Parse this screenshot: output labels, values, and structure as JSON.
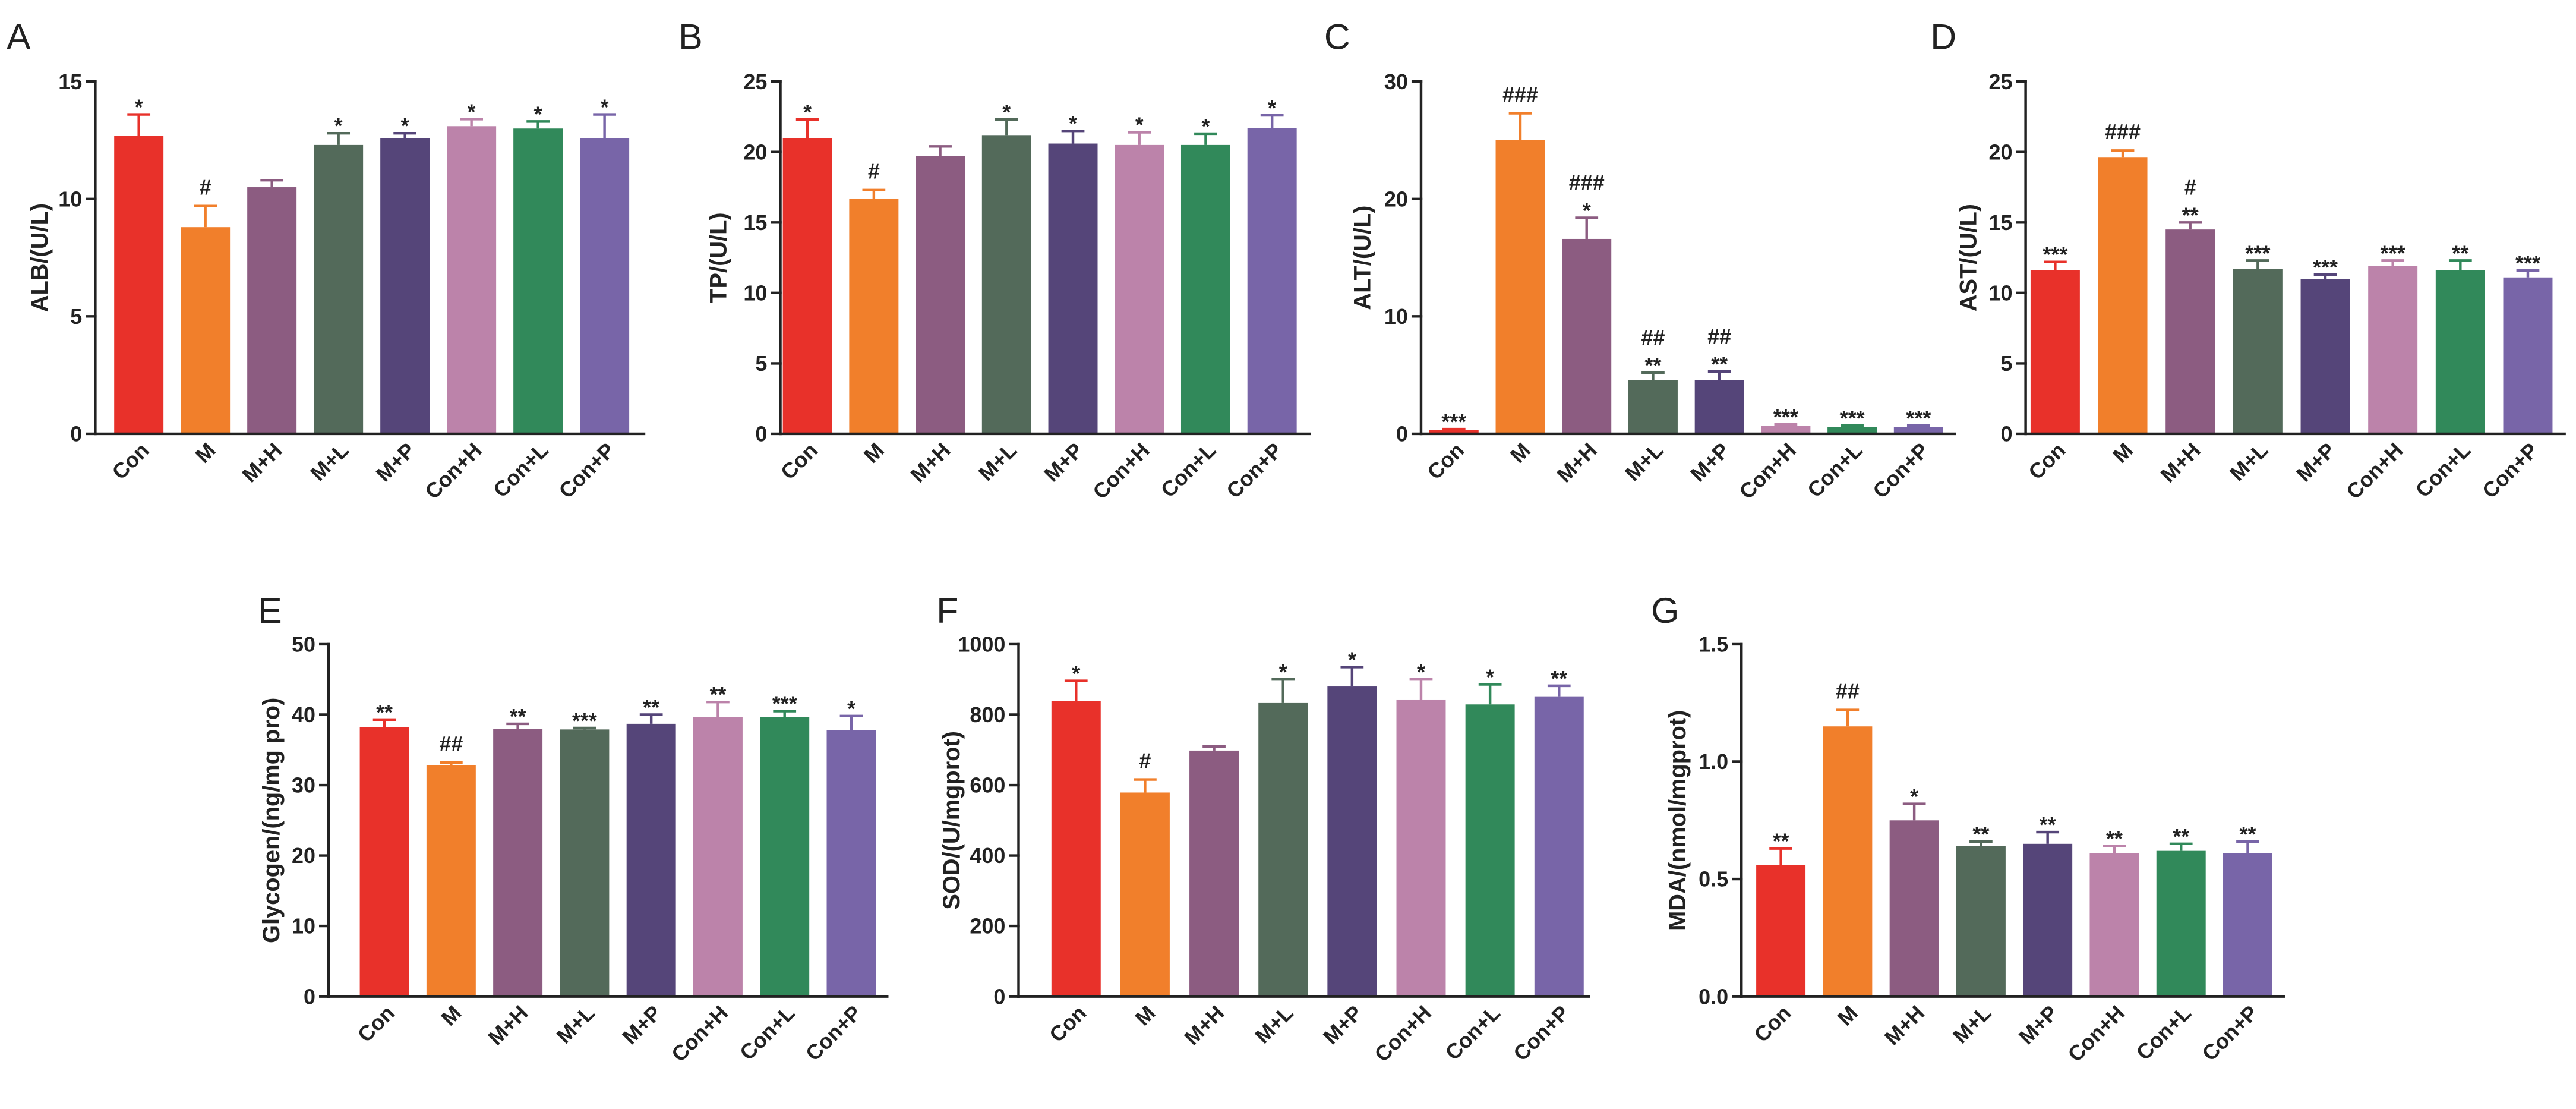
{
  "palette": [
    "#e8312a",
    "#f17f2b",
    "#8c5c81",
    "#536a5a",
    "#554579",
    "#bc83aa",
    "#31895a",
    "#7865a8"
  ],
  "chart_data": [
    {
      "panel": "A",
      "type": "bar",
      "title": "",
      "xlabel": "",
      "ylabel": "ALB/(U/L)",
      "ylim": [
        0,
        15
      ],
      "yticks": [
        "0",
        "5",
        "10",
        "15"
      ],
      "categories": [
        "Con",
        "M",
        "M+H",
        "M+L",
        "M+P",
        "Con+H",
        "Con+L",
        "Con+P"
      ],
      "values": [
        12.7,
        8.8,
        10.5,
        12.3,
        12.6,
        13.1,
        13.0,
        12.6
      ],
      "errors": [
        0.9,
        0.9,
        0.3,
        0.5,
        0.2,
        0.3,
        0.3,
        1.0
      ],
      "significance": [
        [
          "*"
        ],
        [
          "#"
        ],
        [],
        [
          "*"
        ],
        [
          "*"
        ],
        [
          "*"
        ],
        [
          "*"
        ],
        [
          "*"
        ]
      ]
    },
    {
      "panel": "B",
      "type": "bar",
      "title": "",
      "xlabel": "",
      "ylabel": "TP/(U/L)",
      "ylim": [
        0,
        25
      ],
      "yticks": [
        "0",
        "5",
        "10",
        "15",
        "20",
        "25"
      ],
      "categories": [
        "Con",
        "M",
        "M+H",
        "M+L",
        "M+P",
        "Con+H",
        "Con+L",
        "Con+P"
      ],
      "values": [
        21.0,
        16.7,
        19.7,
        21.2,
        20.6,
        20.5,
        20.5,
        21.7
      ],
      "errors": [
        1.3,
        0.6,
        0.7,
        1.1,
        0.9,
        0.9,
        0.8,
        0.9
      ],
      "significance": [
        [
          "*"
        ],
        [
          "#"
        ],
        [],
        [
          "*"
        ],
        [
          "*"
        ],
        [
          "*"
        ],
        [
          "*"
        ],
        [
          "*"
        ]
      ]
    },
    {
      "panel": "C",
      "type": "bar",
      "title": "",
      "xlabel": "",
      "ylabel": "ALT/(U/L)",
      "ylim": [
        0,
        30
      ],
      "yticks": [
        "0",
        "10",
        "20",
        "30"
      ],
      "categories": [
        "Con",
        "M",
        "M+H",
        "M+L",
        "M+P",
        "Con+H",
        "Con+L",
        "Con+P"
      ],
      "values": [
        0.3,
        25.0,
        16.6,
        4.6,
        4.6,
        0.7,
        0.6,
        0.6
      ],
      "errors": [
        0.1,
        2.3,
        1.8,
        0.6,
        0.7,
        0.1,
        0.1,
        0.1
      ],
      "significance": [
        [
          "***"
        ],
        [
          "###"
        ],
        [
          "###",
          "*"
        ],
        [
          "##",
          "**"
        ],
        [
          "##",
          "**"
        ],
        [
          "***"
        ],
        [
          "***"
        ],
        [
          "***"
        ]
      ]
    },
    {
      "panel": "D",
      "type": "bar",
      "title": "",
      "xlabel": "",
      "ylabel": "AST/(U/L)",
      "ylim": [
        0,
        25
      ],
      "yticks": [
        "0",
        "5",
        "10",
        "15",
        "20",
        "25"
      ],
      "categories": [
        "Con",
        "M",
        "M+H",
        "M+L",
        "M+P",
        "Con+H",
        "Con+L",
        "Con+P"
      ],
      "values": [
        11.6,
        19.6,
        14.5,
        11.7,
        11.0,
        11.9,
        11.6,
        11.1
      ],
      "errors": [
        0.6,
        0.5,
        0.5,
        0.6,
        0.3,
        0.4,
        0.7,
        0.5
      ],
      "significance": [
        [
          "***"
        ],
        [
          "###"
        ],
        [
          "#",
          "**"
        ],
        [
          "***"
        ],
        [
          "***"
        ],
        [
          "***"
        ],
        [
          "**"
        ],
        [
          "***"
        ]
      ]
    },
    {
      "panel": "E",
      "type": "bar",
      "title": "",
      "xlabel": "",
      "ylabel": "Glycogen/(ng/mg pro)",
      "ylim": [
        0,
        50
      ],
      "yticks": [
        "0",
        "10",
        "20",
        "30",
        "40",
        "50"
      ],
      "categories": [
        "Con",
        "M",
        "M+H",
        "M+L",
        "M+P",
        "Con+H",
        "Con+L",
        "Con+P"
      ],
      "values": [
        38.2,
        32.8,
        38.0,
        37.9,
        38.7,
        39.7,
        39.7,
        37.8
      ],
      "errors": [
        1.1,
        0.4,
        0.7,
        0.2,
        1.3,
        2.1,
        0.8,
        2.0
      ],
      "significance": [
        [
          "**"
        ],
        [
          "##"
        ],
        [
          "**"
        ],
        [
          "***"
        ],
        [
          "**"
        ],
        [
          "**"
        ],
        [
          "***"
        ],
        [
          "*"
        ]
      ]
    },
    {
      "panel": "F",
      "type": "bar",
      "title": "",
      "xlabel": "",
      "ylabel": "SOD/(U/mgprot)",
      "ylim": [
        0,
        1000
      ],
      "yticks": [
        "0",
        "200",
        "400",
        "600",
        "800",
        "1000"
      ],
      "categories": [
        "Con",
        "M",
        "M+H",
        "M+L",
        "M+P",
        "Con+H",
        "Con+L",
        "Con+P"
      ],
      "values": [
        838,
        579,
        698,
        833,
        880,
        843,
        829,
        852
      ],
      "errors": [
        58,
        37,
        12,
        67,
        55,
        57,
        57,
        30
      ],
      "significance": [
        [
          "*"
        ],
        [
          "#"
        ],
        [],
        [
          "*"
        ],
        [
          "*"
        ],
        [
          "*"
        ],
        [
          "*"
        ],
        [
          "**"
        ]
      ]
    },
    {
      "panel": "G",
      "type": "bar",
      "title": "",
      "xlabel": "",
      "ylabel": "MDA/(nmol/mgprot)",
      "ylim": [
        0,
        1.5
      ],
      "yticks": [
        "0.0",
        "0.5",
        "1.0",
        "1.5"
      ],
      "categories": [
        "Con",
        "M",
        "M+H",
        "M+L",
        "M+P",
        "Con+H",
        "Con+L",
        "Con+P"
      ],
      "values": [
        0.56,
        1.15,
        0.75,
        0.64,
        0.65,
        0.61,
        0.62,
        0.61
      ],
      "errors": [
        0.07,
        0.07,
        0.07,
        0.02,
        0.05,
        0.03,
        0.03,
        0.05
      ],
      "significance": [
        [
          "**"
        ],
        [
          "##"
        ],
        [
          "*"
        ],
        [
          "**"
        ],
        [
          "**"
        ],
        [
          "**"
        ],
        [
          "**"
        ],
        [
          "**"
        ]
      ]
    }
  ]
}
